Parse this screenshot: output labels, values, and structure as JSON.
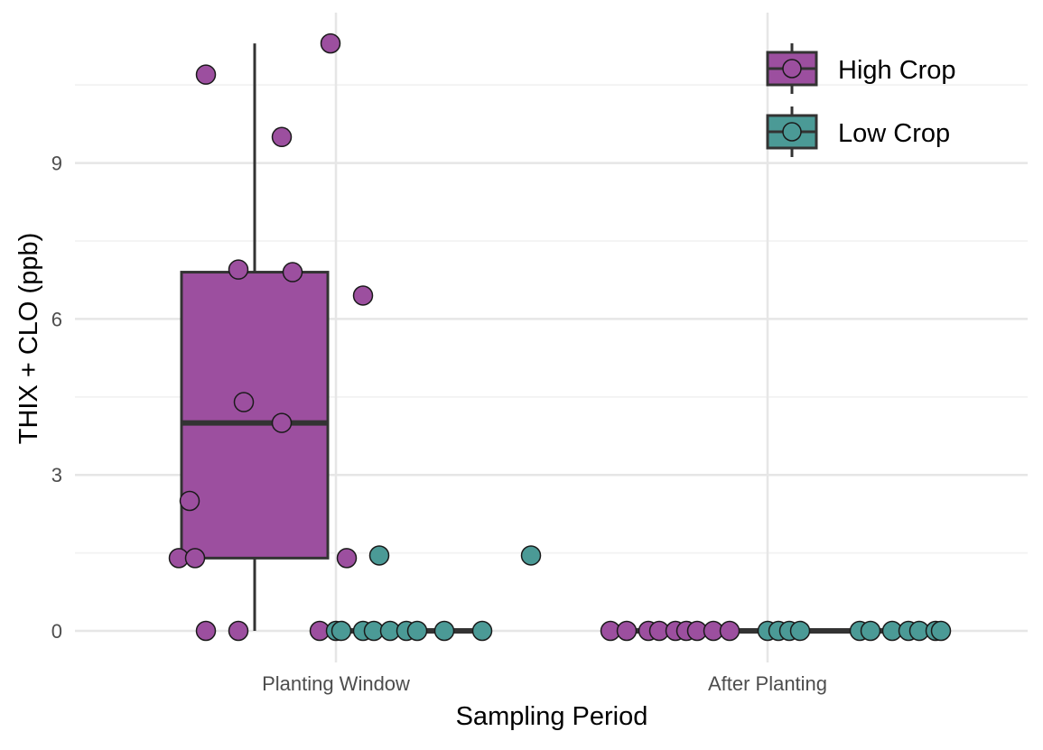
{
  "chart_data": {
    "type": "boxplot",
    "xlabel": "Sampling Period",
    "ylabel": "THIX + CLO (ppb)",
    "categories": [
      "Planting Window",
      "After Planting"
    ],
    "ylim": [
      -0.5,
      11.3
    ],
    "yticks": [
      0,
      3,
      6,
      9
    ],
    "grid": true,
    "legend": {
      "placement": "top-right"
    },
    "colors": {
      "High Crop": "#9c4f9f",
      "Low Crop": "#4b9a96"
    },
    "series": [
      {
        "name": "High Crop",
        "boxes": [
          {
            "category": "Planting Window",
            "q1": 1.4,
            "median": 4.0,
            "q3": 6.9,
            "whisker_low": 0,
            "whisker_high": 11.3
          },
          {
            "category": "After Planting",
            "q1": 0,
            "median": 0,
            "q3": 0,
            "whisker_low": 0,
            "whisker_high": 0
          }
        ],
        "points": [
          {
            "category": "Planting Window",
            "y": 11.3,
            "jitter": 0.14
          },
          {
            "category": "Planting Window",
            "y": 10.7,
            "jitter": -0.09
          },
          {
            "category": "Planting Window",
            "y": 9.5,
            "jitter": 0.05
          },
          {
            "category": "Planting Window",
            "y": 6.95,
            "jitter": -0.03
          },
          {
            "category": "Planting Window",
            "y": 6.9,
            "jitter": 0.07
          },
          {
            "category": "Planting Window",
            "y": 6.45,
            "jitter": 0.2
          },
          {
            "category": "Planting Window",
            "y": 4.4,
            "jitter": -0.02
          },
          {
            "category": "Planting Window",
            "y": 4.0,
            "jitter": 0.05
          },
          {
            "category": "Planting Window",
            "y": 2.5,
            "jitter": -0.12
          },
          {
            "category": "Planting Window",
            "y": 1.4,
            "jitter": -0.14
          },
          {
            "category": "Planting Window",
            "y": 1.4,
            "jitter": -0.11
          },
          {
            "category": "Planting Window",
            "y": 1.4,
            "jitter": 0.17
          },
          {
            "category": "Planting Window",
            "y": 0,
            "jitter": -0.09
          },
          {
            "category": "Planting Window",
            "y": 0,
            "jitter": -0.03
          },
          {
            "category": "Planting Window",
            "y": 0,
            "jitter": 0.12
          },
          {
            "category": "After Planting",
            "y": 0,
            "jitter": -0.14
          },
          {
            "category": "After Planting",
            "y": 0,
            "jitter": -0.11
          },
          {
            "category": "After Planting",
            "y": 0,
            "jitter": -0.07
          },
          {
            "category": "After Planting",
            "y": 0,
            "jitter": -0.05
          },
          {
            "category": "After Planting",
            "y": 0,
            "jitter": -0.02
          },
          {
            "category": "After Planting",
            "y": 0,
            "jitter": 0.0
          },
          {
            "category": "After Planting",
            "y": 0,
            "jitter": 0.02
          },
          {
            "category": "After Planting",
            "y": 0,
            "jitter": 0.05
          },
          {
            "category": "After Planting",
            "y": 0,
            "jitter": 0.08
          }
        ]
      },
      {
        "name": "Low Crop",
        "boxes": [
          {
            "category": "Planting Window",
            "q1": 0,
            "median": 0,
            "q3": 0,
            "whisker_low": 0,
            "whisker_high": 0
          },
          {
            "category": "After Planting",
            "q1": 0,
            "median": 0,
            "q3": 0,
            "whisker_low": 0,
            "whisker_high": 0
          }
        ],
        "points": [
          {
            "category": "Planting Window",
            "y": 1.45,
            "jitter": -0.07
          },
          {
            "category": "Planting Window",
            "y": 1.45,
            "jitter": 0.21
          },
          {
            "category": "Planting Window",
            "y": 0,
            "jitter": -0.15
          },
          {
            "category": "Planting Window",
            "y": 0,
            "jitter": -0.14
          },
          {
            "category": "Planting Window",
            "y": 0,
            "jitter": -0.1
          },
          {
            "category": "Planting Window",
            "y": 0,
            "jitter": -0.08
          },
          {
            "category": "Planting Window",
            "y": 0,
            "jitter": -0.05
          },
          {
            "category": "Planting Window",
            "y": 0,
            "jitter": -0.02
          },
          {
            "category": "Planting Window",
            "y": 0,
            "jitter": 0.0
          },
          {
            "category": "Planting Window",
            "y": 0,
            "jitter": 0.05
          },
          {
            "category": "Planting Window",
            "y": 0,
            "jitter": 0.12
          },
          {
            "category": "After Planting",
            "y": 0,
            "jitter": -0.15
          },
          {
            "category": "After Planting",
            "y": 0,
            "jitter": -0.13
          },
          {
            "category": "After Planting",
            "y": 0,
            "jitter": -0.11
          },
          {
            "category": "After Planting",
            "y": 0,
            "jitter": -0.09
          },
          {
            "category": "After Planting",
            "y": 0,
            "jitter": 0.02
          },
          {
            "category": "After Planting",
            "y": 0,
            "jitter": 0.04
          },
          {
            "category": "After Planting",
            "y": 0,
            "jitter": 0.08
          },
          {
            "category": "After Planting",
            "y": 0,
            "jitter": 0.11
          },
          {
            "category": "After Planting",
            "y": 0,
            "jitter": 0.13
          },
          {
            "category": "After Planting",
            "y": 0,
            "jitter": 0.16
          },
          {
            "category": "After Planting",
            "y": 0,
            "jitter": 0.17
          }
        ]
      }
    ]
  }
}
